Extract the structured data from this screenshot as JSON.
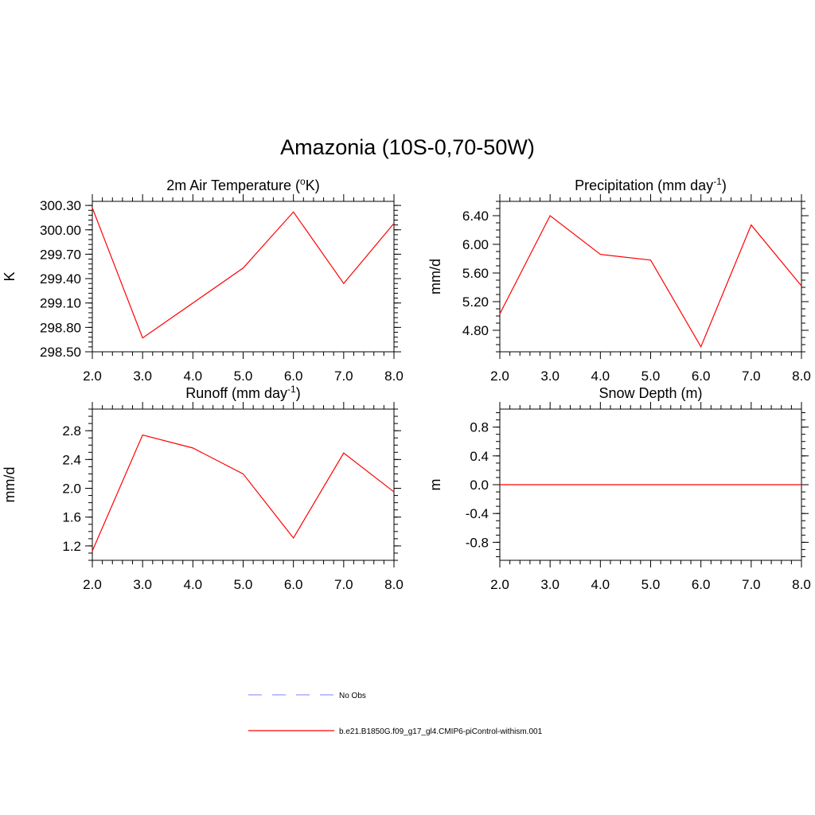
{
  "figure_title": "Amazonia (10S-0,70-50W)",
  "chart_data": [
    {
      "id": "temp",
      "type": "line",
      "title": "2m Air Temperature (°K)",
      "title_parts": [
        "2m Air Temperature (",
        "o",
        "K)"
      ],
      "ylabel": "K",
      "x": [
        2.0,
        3.0,
        4.0,
        5.0,
        6.0,
        7.0,
        8.0
      ],
      "x_ticks": [
        "2.0",
        "3.0",
        "4.0",
        "5.0",
        "6.0",
        "7.0",
        "8.0"
      ],
      "xlim": [
        2.0,
        8.0
      ],
      "ylim": [
        298.5,
        300.35
      ],
      "y_ticks": [
        298.5,
        298.8,
        299.1,
        299.4,
        299.7,
        300.0,
        300.3
      ],
      "y_tick_labels": [
        "298.50",
        "298.80",
        "299.10",
        "299.40",
        "299.70",
        "300.00",
        "300.30"
      ],
      "y_minor_step": 0.06,
      "series": [
        {
          "values": [
            300.27,
            298.67,
            299.1,
            299.53,
            300.22,
            299.34,
            300.08
          ],
          "color": "#ff0000"
        }
      ]
    },
    {
      "id": "precip",
      "type": "line",
      "title": "Precipitation (mm day-1)",
      "title_parts": [
        "Precipitation (mm day",
        "-1",
        ")"
      ],
      "ylabel": "mm/d",
      "x": [
        2.0,
        3.0,
        4.0,
        5.0,
        6.0,
        7.0,
        8.0
      ],
      "x_ticks": [
        "2.0",
        "3.0",
        "4.0",
        "5.0",
        "6.0",
        "7.0",
        "8.0"
      ],
      "xlim": [
        2.0,
        8.0
      ],
      "ylim": [
        4.5,
        6.6
      ],
      "y_ticks": [
        4.8,
        5.2,
        5.6,
        6.0,
        6.4
      ],
      "y_tick_labels": [
        "4.80",
        "5.20",
        "5.60",
        "6.00",
        "6.40"
      ],
      "y_minor_step": 0.1,
      "series": [
        {
          "values": [
            5.03,
            6.4,
            5.86,
            5.78,
            4.57,
            6.27,
            5.42
          ],
          "color": "#ff0000"
        }
      ]
    },
    {
      "id": "runoff",
      "type": "line",
      "title": "Runoff (mm day-1)",
      "title_parts": [
        "Runoff (mm day",
        "-1",
        ")"
      ],
      "ylabel": "mm/d",
      "x": [
        2.0,
        3.0,
        4.0,
        5.0,
        6.0,
        7.0,
        8.0
      ],
      "x_ticks": [
        "2.0",
        "3.0",
        "4.0",
        "5.0",
        "6.0",
        "7.0",
        "8.0"
      ],
      "xlim": [
        2.0,
        8.0
      ],
      "ylim": [
        1.0,
        3.1
      ],
      "y_ticks": [
        1.2,
        1.6,
        2.0,
        2.4,
        2.8
      ],
      "y_tick_labels": [
        "1.2",
        "1.6",
        "2.0",
        "2.4",
        "2.8"
      ],
      "y_minor_step": 0.1,
      "series": [
        {
          "values": [
            1.13,
            2.74,
            2.56,
            2.2,
            1.31,
            2.49,
            1.95
          ],
          "color": "#ff0000"
        }
      ]
    },
    {
      "id": "snow",
      "type": "line",
      "title": "Snow Depth (m)",
      "title_parts": [
        "Snow Depth (m)",
        "",
        ""
      ],
      "ylabel": "m",
      "x": [
        2.0,
        3.0,
        4.0,
        5.0,
        6.0,
        7.0,
        8.0
      ],
      "x_ticks": [
        "2.0",
        "3.0",
        "4.0",
        "5.0",
        "6.0",
        "7.0",
        "8.0"
      ],
      "xlim": [
        2.0,
        8.0
      ],
      "ylim": [
        -1.05,
        1.05
      ],
      "y_ticks": [
        -0.8,
        -0.4,
        0.0,
        0.4,
        0.8
      ],
      "y_tick_labels": [
        "-0.8",
        "-0.4",
        "0.0",
        "0.4",
        "0.8"
      ],
      "y_minor_step": 0.1,
      "series": [
        {
          "values": [
            0.0,
            0.0,
            0.0,
            0.0,
            0.0,
            0.0,
            0.0
          ],
          "color": "#ff0000"
        }
      ]
    }
  ],
  "legend": [
    {
      "label": "No Obs",
      "color": "#9999ff",
      "style": "dashed"
    },
    {
      "label": "b.e21.B1850G.f09_g17_gl4.CMIP6-piControl-withism.001",
      "color": "#ff0000",
      "style": "solid"
    }
  ]
}
